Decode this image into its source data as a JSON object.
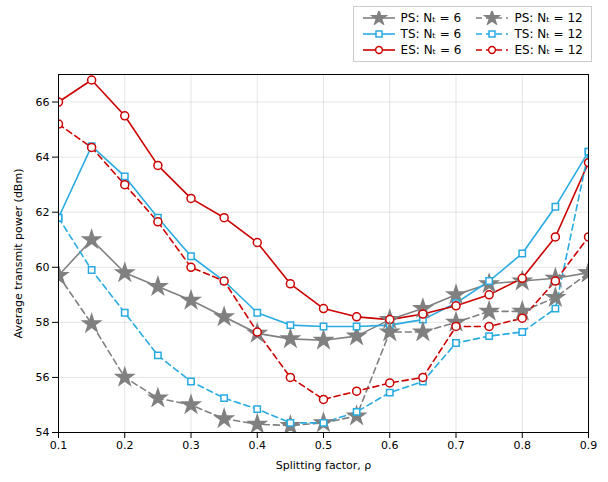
{
  "chart_data": {
    "type": "line",
    "xlabel": "Splitting factor, ρ",
    "ylabel": "Average transmit power (dBm)",
    "x": [
      0.1,
      0.15,
      0.2,
      0.25,
      0.3,
      0.35,
      0.4,
      0.45,
      0.5,
      0.55,
      0.6,
      0.65,
      0.7,
      0.75,
      0.8,
      0.85,
      0.9
    ],
    "series": [
      {
        "name": "PS: Nₜ = 6",
        "color": "#808080",
        "line_style": "solid",
        "marker": "star",
        "values": [
          59.7,
          61.0,
          59.8,
          59.3,
          58.8,
          58.2,
          57.6,
          57.4,
          57.35,
          57.5,
          58.1,
          58.5,
          59.0,
          59.4,
          59.5,
          59.6,
          59.8
        ]
      },
      {
        "name": "TS: Nₜ = 6",
        "color": "#29ABE2",
        "line_style": "solid",
        "marker": "square",
        "values": [
          61.8,
          64.4,
          63.3,
          61.8,
          60.4,
          59.5,
          58.35,
          57.9,
          57.85,
          57.85,
          57.9,
          58.1,
          58.7,
          59.5,
          60.5,
          62.2,
          64.2
        ]
      },
      {
        "name": "ES: Nₜ = 6",
        "color": "#CC0000",
        "line_style": "solid",
        "marker": "circle",
        "values": [
          66.0,
          66.8,
          65.5,
          63.7,
          62.5,
          61.8,
          60.9,
          59.4,
          58.5,
          58.2,
          58.1,
          58.3,
          58.6,
          59.0,
          59.6,
          61.1,
          63.8
        ]
      },
      {
        "name": "PS: Nₜ = 12",
        "color": "#808080",
        "line_style": "dashed",
        "marker": "star",
        "values": [
          59.7,
          57.95,
          56.0,
          55.25,
          55.0,
          54.5,
          54.3,
          54.25,
          54.35,
          54.6,
          57.65,
          57.65,
          58.0,
          58.4,
          58.4,
          58.9,
          59.8
        ]
      },
      {
        "name": "TS: Nₜ = 12",
        "color": "#29ABE2",
        "line_style": "dashed",
        "marker": "square",
        "values": [
          61.8,
          59.9,
          58.35,
          56.8,
          55.85,
          55.25,
          54.85,
          54.35,
          54.35,
          54.75,
          55.45,
          55.85,
          57.25,
          57.5,
          57.65,
          58.5,
          64.2
        ]
      },
      {
        "name": "ES: Nₜ = 12",
        "color": "#CC0000",
        "line_style": "dashed",
        "marker": "circle",
        "values": [
          65.2,
          64.35,
          63.0,
          61.65,
          60.0,
          59.5,
          57.65,
          56.0,
          55.2,
          55.5,
          55.8,
          56.0,
          57.85,
          57.85,
          58.15,
          59.5,
          61.1
        ]
      }
    ],
    "xlim": [
      0.1,
      0.9
    ],
    "ylim": [
      54,
      67
    ],
    "xticks": [
      0.1,
      0.2,
      0.3,
      0.4,
      0.5,
      0.6,
      0.7,
      0.8,
      0.9
    ],
    "yticks": [
      54,
      56,
      58,
      60,
      62,
      64,
      66
    ],
    "grid": true,
    "legend": "upper right"
  }
}
